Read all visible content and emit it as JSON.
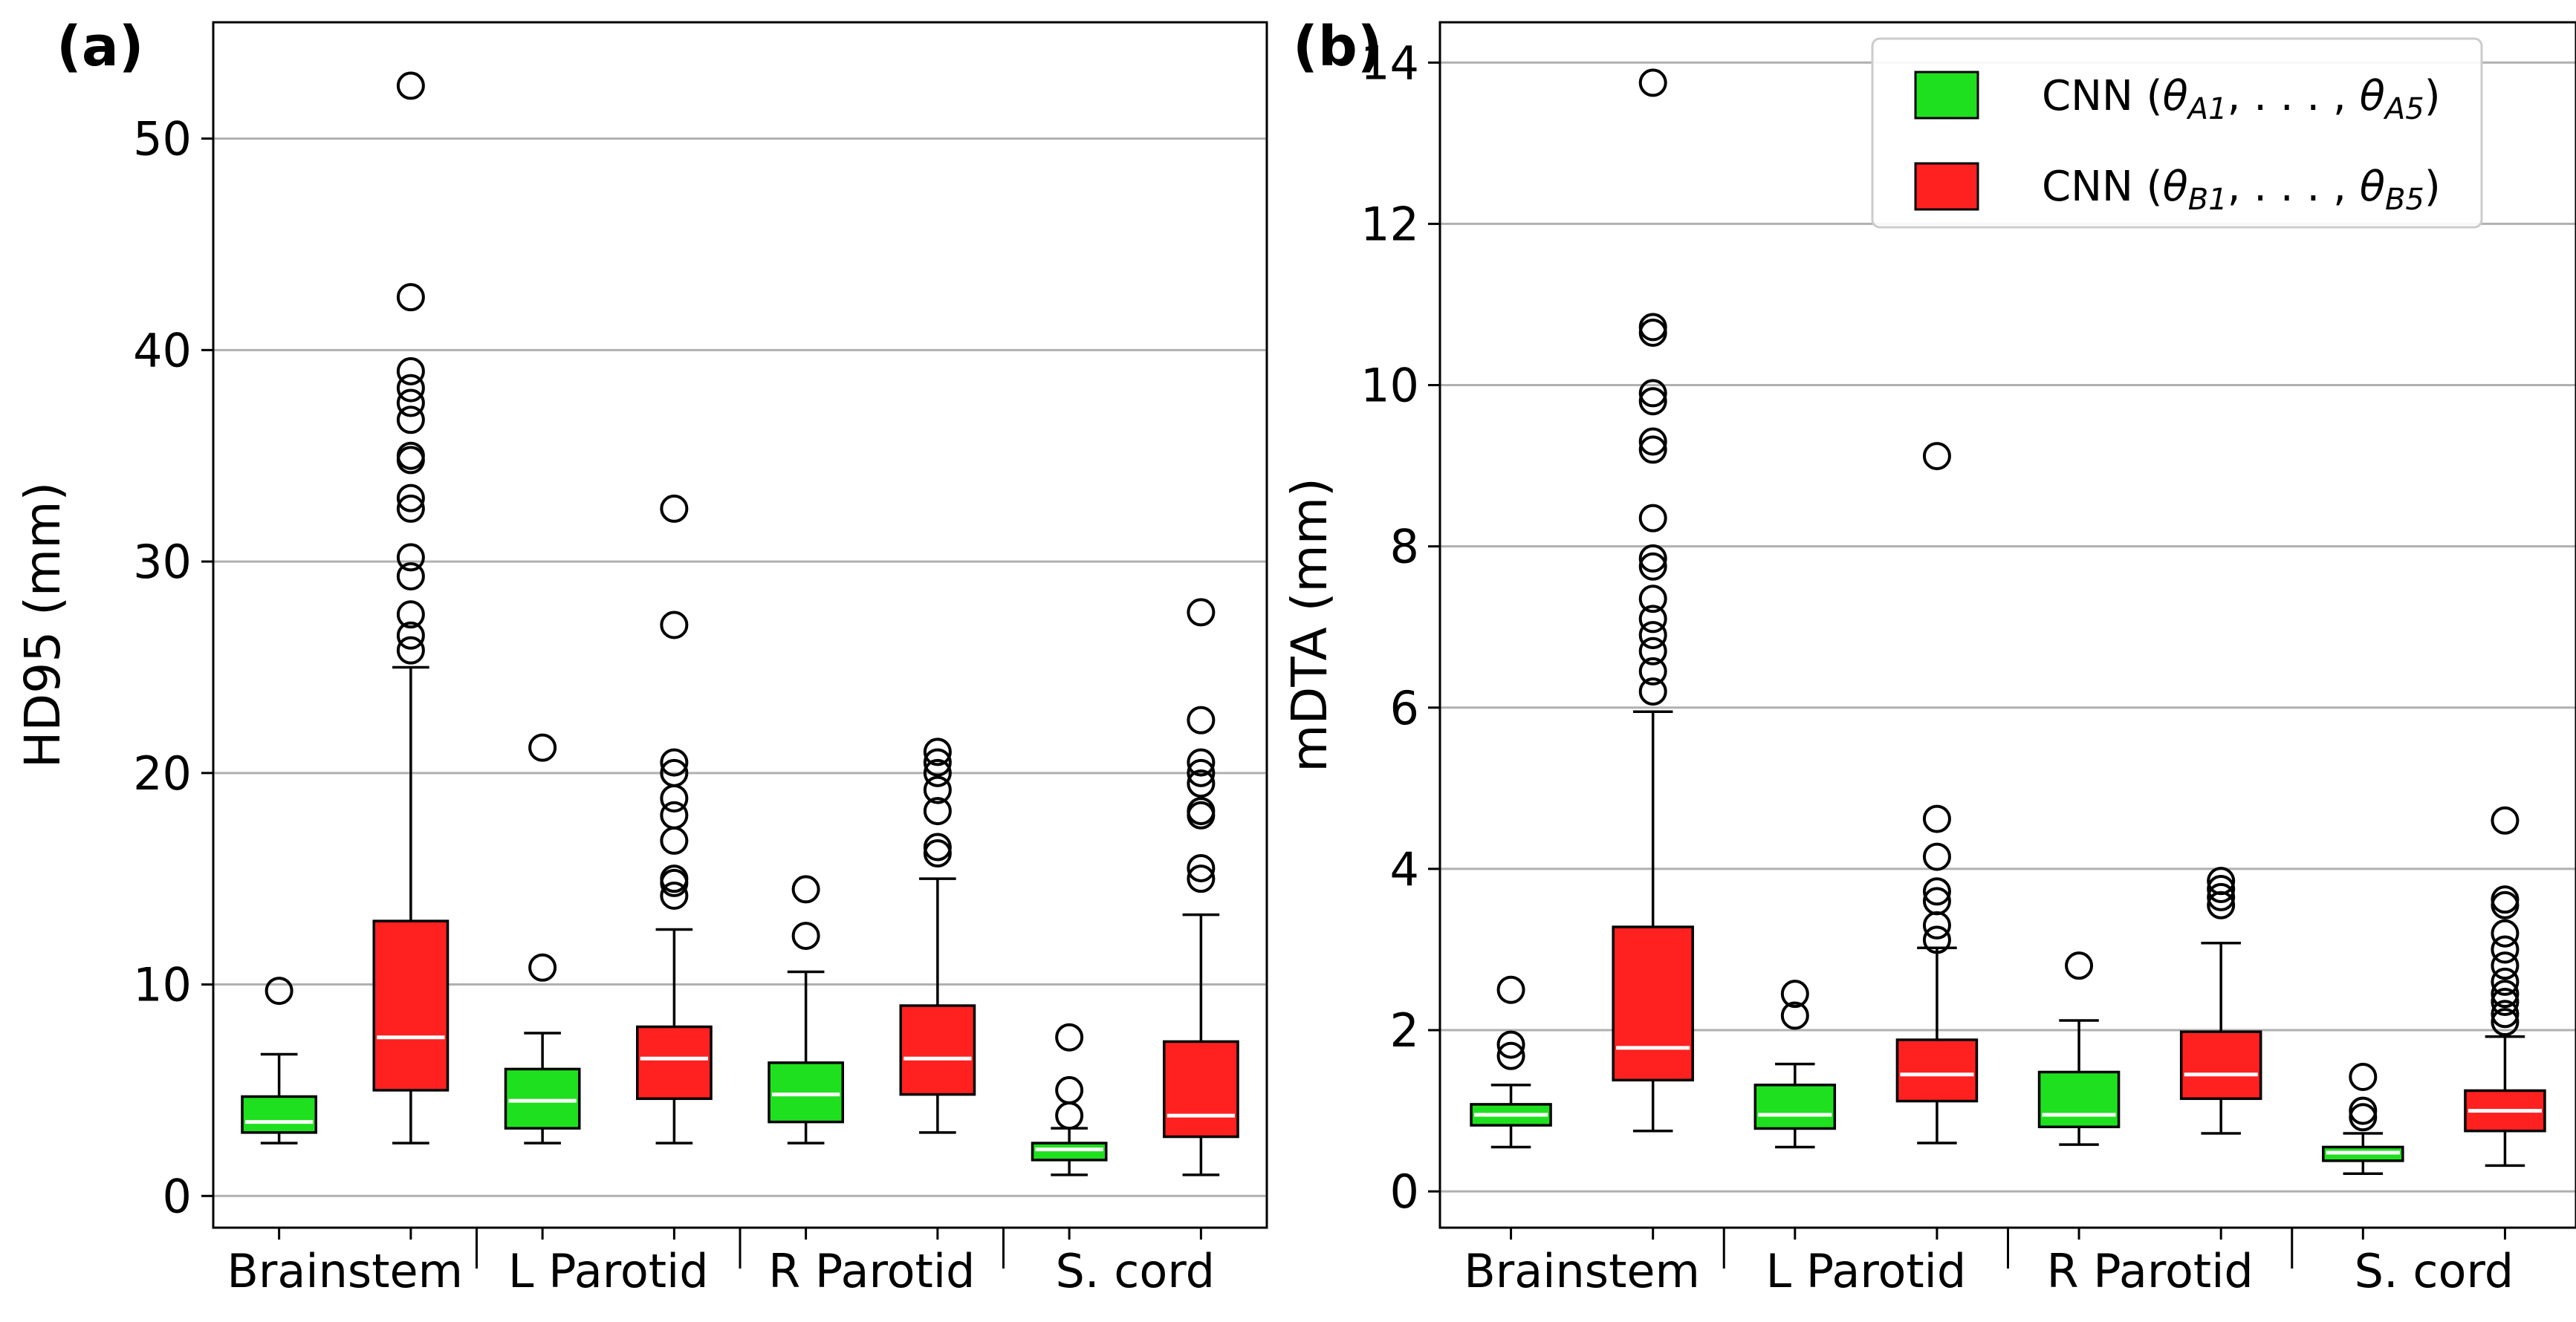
{
  "colors": {
    "cnn_a": "#1fe01f",
    "cnn_b": "#ff2020",
    "median": "#ffffff",
    "grid": "#b0b0b0"
  },
  "legend": {
    "items": [
      {
        "series": "cnn_a",
        "label": "CNN (θ_A1, . . . , θ_A5)",
        "prefix": "CNN (",
        "sym": "θ",
        "sub1": "A1",
        "mid": ", . . . , ",
        "sub2": "A5",
        "suffix": ")"
      },
      {
        "series": "cnn_b",
        "label": "CNN (θ_B1, . . . , θ_B5)",
        "prefix": "CNN (",
        "sym": "θ",
        "sub1": "B1",
        "mid": ", . . . , ",
        "sub2": "B5",
        "suffix": ")"
      }
    ]
  },
  "chart_data": [
    {
      "type": "box",
      "panel_label": "(a)",
      "title": "",
      "xlabel": "",
      "ylabel": "HD95 (mm)",
      "ylim": [
        -1.5,
        55.5
      ],
      "yticks": [
        0,
        10,
        20,
        30,
        40,
        50
      ],
      "grid": "horizontal",
      "categories": [
        "Brainstem",
        "L Parotid",
        "R Parotid",
        "S. cord"
      ],
      "series": [
        {
          "name": "CNN (θ_A1, ..., θ_A5)",
          "color_key": "cnn_a",
          "boxes": [
            {
              "whislo": 2.5,
              "q1": 3.0,
              "med": 3.5,
              "q3": 4.7,
              "whishi": 6.7,
              "fliers": [
                9.7
              ]
            },
            {
              "whislo": 2.5,
              "q1": 3.2,
              "med": 4.5,
              "q3": 6.0,
              "whishi": 7.7,
              "fliers": [
                10.8,
                21.2
              ]
            },
            {
              "whislo": 2.5,
              "q1": 3.5,
              "med": 4.8,
              "q3": 6.3,
              "whishi": 10.6,
              "fliers": [
                12.3,
                14.5
              ]
            },
            {
              "whislo": 1.0,
              "q1": 1.7,
              "med": 2.2,
              "q3": 2.5,
              "whishi": 3.2,
              "fliers": [
                3.8,
                5.0,
                7.5
              ]
            }
          ]
        },
        {
          "name": "CNN (θ_B1, ..., θ_B5)",
          "color_key": "cnn_b",
          "boxes": [
            {
              "whislo": 2.5,
              "q1": 5.0,
              "med": 7.5,
              "q3": 13.0,
              "whishi": 25.0,
              "fliers": [
                25.8,
                26.5,
                27.5,
                29.3,
                30.2,
                32.5,
                33.0,
                34.8,
                35.0,
                36.7,
                37.5,
                38.2,
                39.0,
                42.5,
                52.5
              ]
            },
            {
              "whislo": 2.5,
              "q1": 4.6,
              "med": 6.5,
              "q3": 8.0,
              "whishi": 12.6,
              "fliers": [
                14.2,
                14.8,
                15.0,
                16.8,
                18.0,
                18.8,
                20.0,
                20.5,
                27.0,
                32.5
              ]
            },
            {
              "whislo": 3.0,
              "q1": 4.8,
              "med": 6.5,
              "q3": 9.0,
              "whishi": 15.0,
              "fliers": [
                16.2,
                16.5,
                18.2,
                19.2,
                20.0,
                20.5,
                21.0
              ]
            },
            {
              "whislo": 1.0,
              "q1": 2.8,
              "med": 3.8,
              "q3": 7.3,
              "whishi": 13.3,
              "fliers": [
                15.0,
                15.5,
                18.0,
                18.2,
                19.5,
                20.0,
                20.5,
                22.5,
                27.6
              ]
            }
          ]
        }
      ]
    },
    {
      "type": "box",
      "panel_label": "(b)",
      "title": "",
      "xlabel": "",
      "ylabel": "mDTA (mm)",
      "ylim": [
        -0.45,
        14.5
      ],
      "yticks": [
        0,
        2,
        4,
        6,
        8,
        10,
        12,
        14
      ],
      "grid": "horizontal",
      "legend_position": "top-right",
      "categories": [
        "Brainstem",
        "L Parotid",
        "R Parotid",
        "S. cord"
      ],
      "series": [
        {
          "name": "CNN (θ_A1, ..., θ_A5)",
          "color_key": "cnn_a",
          "boxes": [
            {
              "whislo": 0.55,
              "q1": 0.82,
              "med": 0.95,
              "q3": 1.08,
              "whishi": 1.32,
              "fliers": [
                1.68,
                1.82,
                2.5
              ]
            },
            {
              "whislo": 0.55,
              "q1": 0.78,
              "med": 0.95,
              "q3": 1.32,
              "whishi": 1.58,
              "fliers": [
                2.18,
                2.45
              ]
            },
            {
              "whislo": 0.58,
              "q1": 0.8,
              "med": 0.95,
              "q3": 1.48,
              "whishi": 2.12,
              "fliers": [
                2.8
              ]
            },
            {
              "whislo": 0.22,
              "q1": 0.38,
              "med": 0.48,
              "q3": 0.55,
              "whishi": 0.72,
              "fliers": [
                0.92,
                1.0,
                1.42
              ]
            }
          ]
        },
        {
          "name": "CNN (θ_B1, ..., θ_B5)",
          "color_key": "cnn_b",
          "boxes": [
            {
              "whislo": 0.75,
              "q1": 1.38,
              "med": 1.78,
              "q3": 3.28,
              "whishi": 5.95,
              "fliers": [
                6.2,
                6.45,
                6.7,
                6.9,
                7.1,
                7.35,
                7.75,
                7.85,
                8.35,
                9.2,
                9.3,
                9.8,
                9.9,
                10.65,
                10.72,
                13.75
              ]
            },
            {
              "whislo": 0.6,
              "q1": 1.12,
              "med": 1.45,
              "q3": 1.88,
              "whishi": 3.02,
              "fliers": [
                3.12,
                3.3,
                3.6,
                3.72,
                4.15,
                4.62,
                9.12
              ]
            },
            {
              "whislo": 0.72,
              "q1": 1.15,
              "med": 1.45,
              "q3": 1.98,
              "whishi": 3.08,
              "fliers": [
                3.55,
                3.65,
                3.75,
                3.85
              ]
            },
            {
              "whislo": 0.32,
              "q1": 0.75,
              "med": 1.0,
              "q3": 1.25,
              "whishi": 1.92,
              "fliers": [
                2.1,
                2.2,
                2.35,
                2.45,
                2.6,
                2.8,
                3.0,
                3.2,
                3.55,
                3.62,
                4.6
              ]
            }
          ]
        }
      ]
    }
  ]
}
